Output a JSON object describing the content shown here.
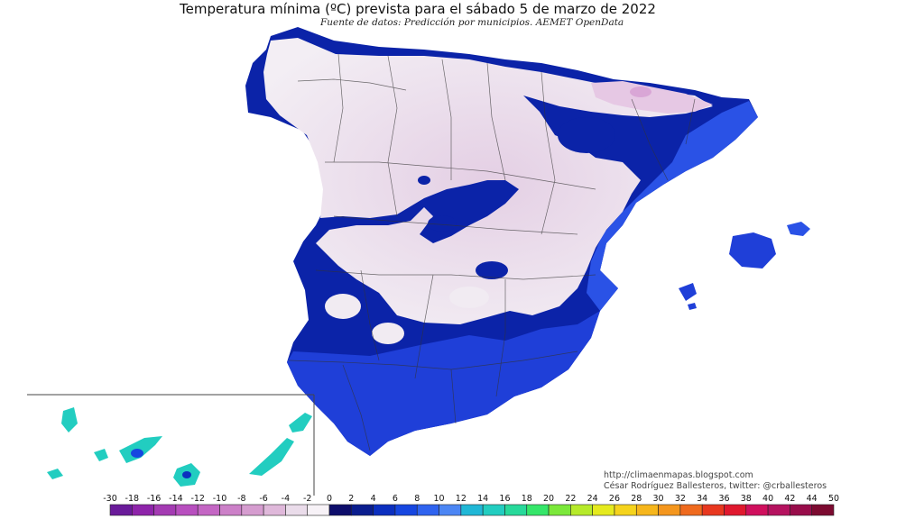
{
  "map": {
    "title": "Temperatura mínima (ºC) prevista para el sábado 5 de marzo de 2022",
    "subtitle": "Fuente de datos: Predicción por municipios. AEMET OpenData",
    "credits": {
      "blog": "http://climaenmapas.blogspot.com",
      "author": "César Rodríguez Ballesteros, twitter: @crballesteros"
    },
    "regions": {
      "peninsula": "Península Ibérica (España)",
      "balearic": "Islas Baleares",
      "canary": "Islas Canarias"
    }
  },
  "legend": {
    "unit": "ºC",
    "ticks": [
      "-30",
      "-18",
      "-16",
      "-14",
      "-12",
      "-10",
      "-8",
      "-6",
      "-4",
      "-2",
      "0",
      "2",
      "4",
      "6",
      "8",
      "10",
      "12",
      "14",
      "16",
      "18",
      "20",
      "22",
      "24",
      "26",
      "28",
      "30",
      "32",
      "34",
      "36",
      "38",
      "40",
      "42",
      "44",
      "50"
    ],
    "colors": [
      "#6a1b9a",
      "#8e24aa",
      "#a43bb3",
      "#b84fbf",
      "#c466c4",
      "#cc80c8",
      "#d59ccf",
      "#dfb8da",
      "#eadcea",
      "#f7f2f7",
      "#0d0d6b",
      "#0a1d8e",
      "#0b2fbf",
      "#1646e0",
      "#2f63ef",
      "#4c86f4",
      "#20b7d6",
      "#22cdc0",
      "#27d99a",
      "#35e66a",
      "#7be83a",
      "#b6ea2a",
      "#e5ea1e",
      "#f5d31c",
      "#f6b61c",
      "#f4961d",
      "#ef6a1e",
      "#e8381f",
      "#e0182e",
      "#d00f5d",
      "#b5125f",
      "#980c4a",
      "#7c0a30"
    ]
  }
}
